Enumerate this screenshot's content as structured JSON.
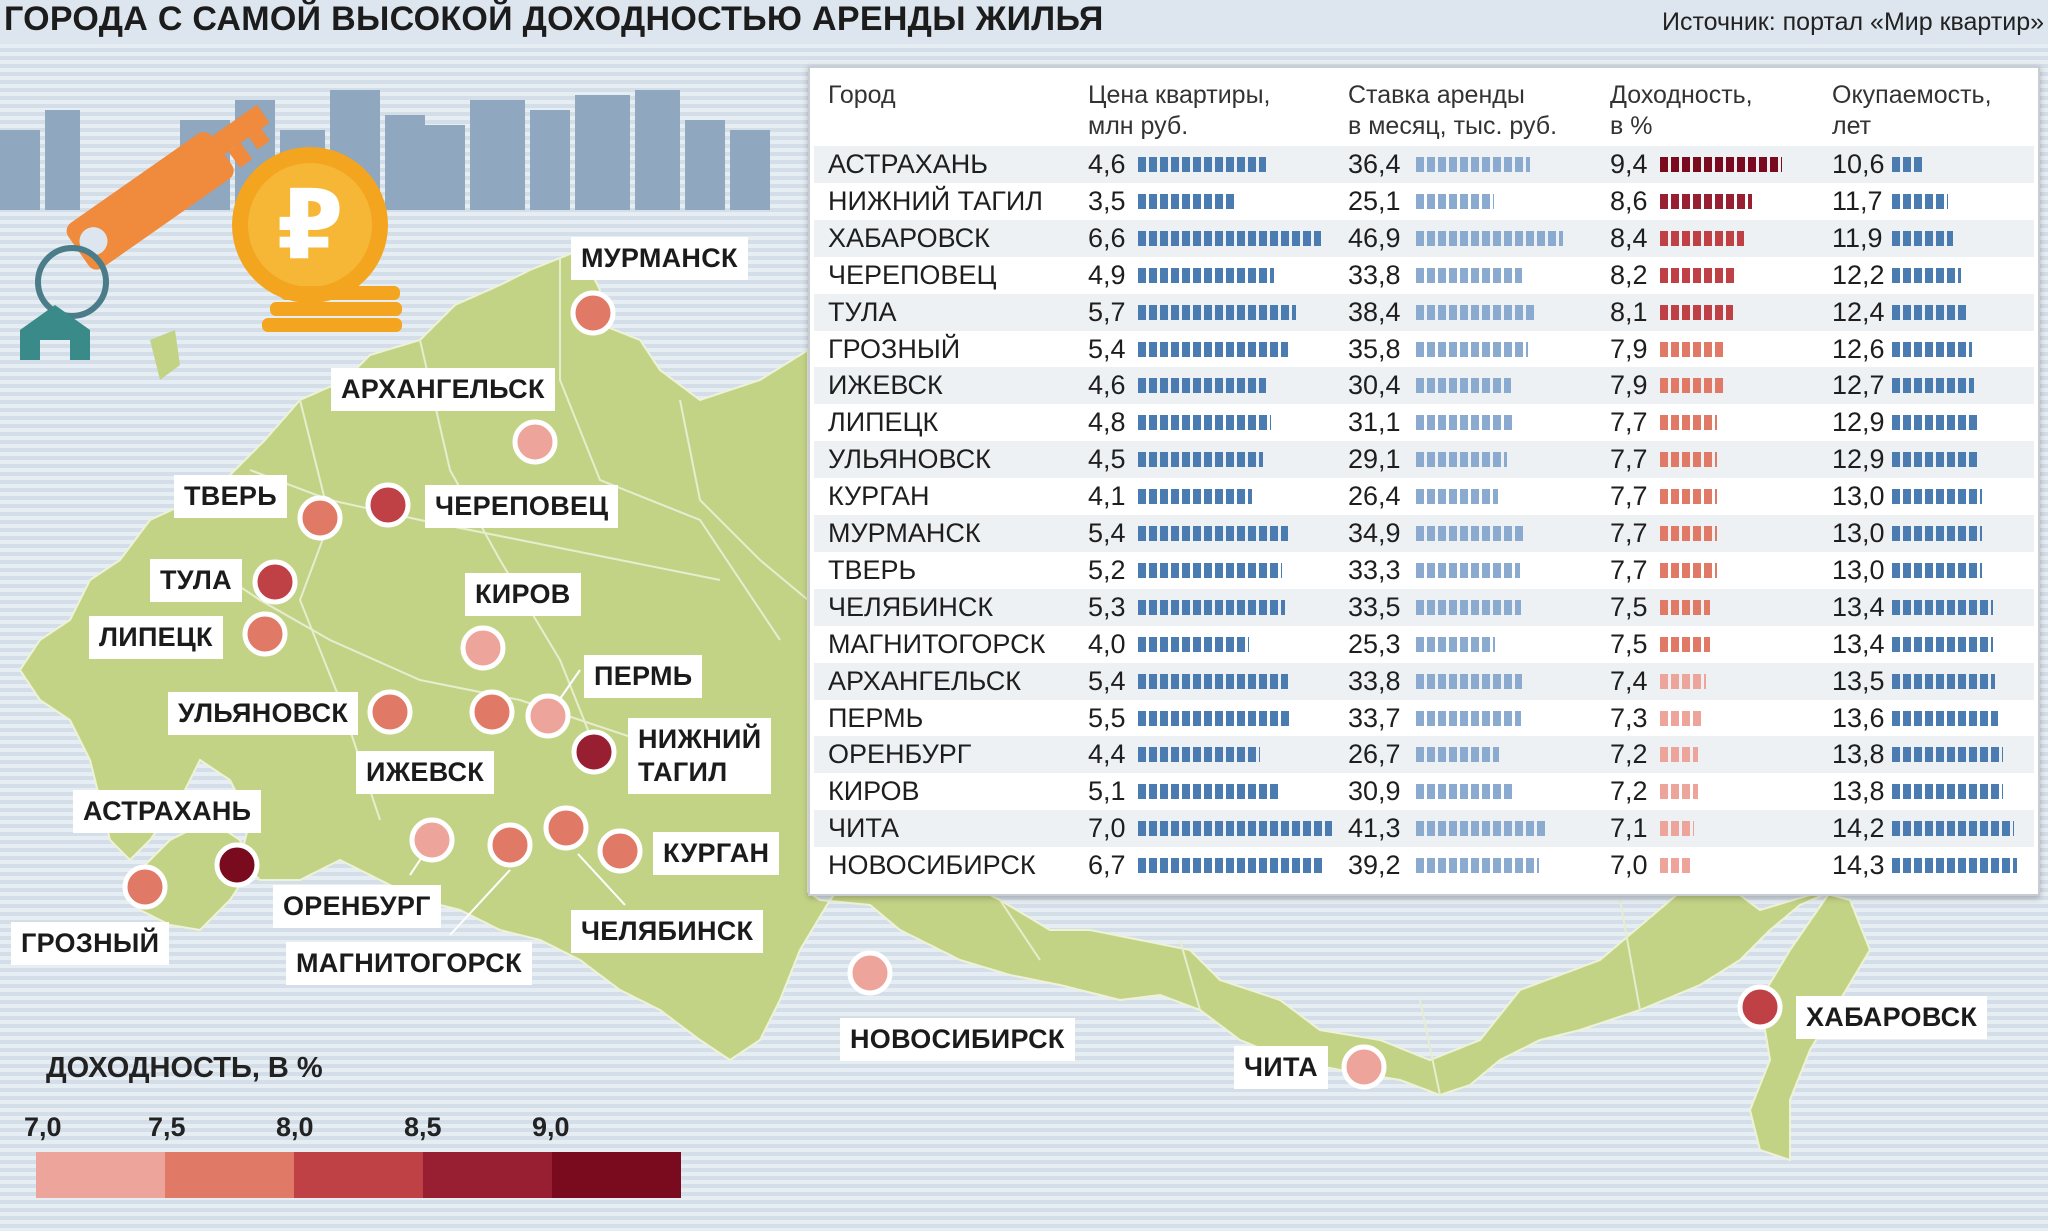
{
  "title": "ГОРОДА С САМОЙ ВЫСОКОЙ ДОХОДНОСТЬЮ АРЕНДЫ ЖИЛЬЯ",
  "source": "Источник: портал «Мир квартир»",
  "colors": {
    "bar_blue": "#4a7cb2",
    "bar_blue_light": "#8aabcf",
    "map_land": "#c3d386",
    "map_border": "#eef2d8",
    "background_stripe": "#d7e1ea",
    "yield_scale": [
      "#eda49b",
      "#e07a66",
      "#bf4045",
      "#981f31",
      "#7a0a1e"
    ]
  },
  "legend": {
    "title": "ДОХОДНОСТЬ, В %",
    "ticks": [
      "7,0",
      "7,5",
      "8,0",
      "8,5",
      "9,0"
    ]
  },
  "icons": [
    "key-icon",
    "ruble-coin-icon",
    "coin-stack-icon",
    "city-skyline-icon"
  ],
  "chart_data": {
    "type": "table",
    "columns": [
      "Город",
      "Цена квартиры,\nмлн руб.",
      "Ставка аренды\nв месяц, тыс. руб.",
      "Доходность,\nв %",
      "Окупаемость,\nлет"
    ],
    "rows": [
      {
        "city": "АСТРАХАНЬ",
        "price": 4.6,
        "rent": 36.4,
        "yield": 9.4,
        "payback": 10.6
      },
      {
        "city": "НИЖНИЙ ТАГИЛ",
        "price": 3.5,
        "rent": 25.1,
        "yield": 8.6,
        "payback": 11.7
      },
      {
        "city": "ХАБАРОВСК",
        "price": 6.6,
        "rent": 46.9,
        "yield": 8.4,
        "payback": 11.9
      },
      {
        "city": "ЧЕРЕПОВЕЦ",
        "price": 4.9,
        "rent": 33.8,
        "yield": 8.2,
        "payback": 12.2
      },
      {
        "city": "ТУЛА",
        "price": 5.7,
        "rent": 38.4,
        "yield": 8.1,
        "payback": 12.4
      },
      {
        "city": "ГРОЗНЫЙ",
        "price": 5.4,
        "rent": 35.8,
        "yield": 7.9,
        "payback": 12.6
      },
      {
        "city": "ИЖЕВСК",
        "price": 4.6,
        "rent": 30.4,
        "yield": 7.9,
        "payback": 12.7
      },
      {
        "city": "ЛИПЕЦК",
        "price": 4.8,
        "rent": 31.1,
        "yield": 7.7,
        "payback": 12.9
      },
      {
        "city": "УЛЬЯНОВСК",
        "price": 4.5,
        "rent": 29.1,
        "yield": 7.7,
        "payback": 12.9
      },
      {
        "city": "КУРГАН",
        "price": 4.1,
        "rent": 26.4,
        "yield": 7.7,
        "payback": 13.0
      },
      {
        "city": "МУРМАНСК",
        "price": 5.4,
        "rent": 34.9,
        "yield": 7.7,
        "payback": 13.0
      },
      {
        "city": "ТВЕРЬ",
        "price": 5.2,
        "rent": 33.3,
        "yield": 7.7,
        "payback": 13.0
      },
      {
        "city": "ЧЕЛЯБИНСК",
        "price": 5.3,
        "rent": 33.5,
        "yield": 7.5,
        "payback": 13.4
      },
      {
        "city": "МАГНИТОГОРСК",
        "price": 4.0,
        "rent": 25.3,
        "yield": 7.5,
        "payback": 13.4
      },
      {
        "city": "АРХАНГЕЛЬСК",
        "price": 5.4,
        "rent": 33.8,
        "yield": 7.4,
        "payback": 13.5
      },
      {
        "city": "ПЕРМЬ",
        "price": 5.5,
        "rent": 33.7,
        "yield": 7.3,
        "payback": 13.6
      },
      {
        "city": "ОРЕНБУРГ",
        "price": 4.4,
        "rent": 26.7,
        "yield": 7.2,
        "payback": 13.8
      },
      {
        "city": "КИРОВ",
        "price": 5.1,
        "rent": 30.9,
        "yield": 7.2,
        "payback": 13.8
      },
      {
        "city": "ЧИТА",
        "price": 7.0,
        "rent": 41.3,
        "yield": 7.1,
        "payback": 14.2
      },
      {
        "city": "НОВОСИБИРСК",
        "price": 6.7,
        "rent": 39.2,
        "yield": 7.0,
        "payback": 14.3
      }
    ]
  },
  "map_labels": [
    {
      "id": "murmansk",
      "text": "МУРМАНСК"
    },
    {
      "id": "arkhangelsk",
      "text": "АРХАНГЕЛЬСК"
    },
    {
      "id": "tver",
      "text": "ТВЕРЬ"
    },
    {
      "id": "cherepovets",
      "text": "ЧЕРЕПОВЕЦ"
    },
    {
      "id": "tula",
      "text": "ТУЛА"
    },
    {
      "id": "kirov",
      "text": "КИРОВ"
    },
    {
      "id": "lipetsk",
      "text": "ЛИПЕЦК"
    },
    {
      "id": "perm",
      "text": "ПЕРМЬ"
    },
    {
      "id": "ulyanovsk",
      "text": "УЛЬЯНОВСК"
    },
    {
      "id": "nizhny_tagil",
      "text": "НИЖНИЙ\nТАГИЛ"
    },
    {
      "id": "izhevsk",
      "text": "ИЖЕВСК"
    },
    {
      "id": "astrakhan",
      "text": "АСТРАХАНЬ"
    },
    {
      "id": "kurgan",
      "text": "КУРГАН"
    },
    {
      "id": "orenburg",
      "text": "ОРЕНБУРГ"
    },
    {
      "id": "grozny",
      "text": "ГРОЗНЫЙ"
    },
    {
      "id": "chelyabinsk",
      "text": "ЧЕЛЯБИНСК"
    },
    {
      "id": "magnitogorsk",
      "text": "МАГНИТОГОРСК"
    },
    {
      "id": "novosibirsk",
      "text": "НОВОСИБИРСК"
    },
    {
      "id": "chita",
      "text": "ЧИТА"
    },
    {
      "id": "khabarovsk",
      "text": "ХАБАРОВСК"
    }
  ]
}
